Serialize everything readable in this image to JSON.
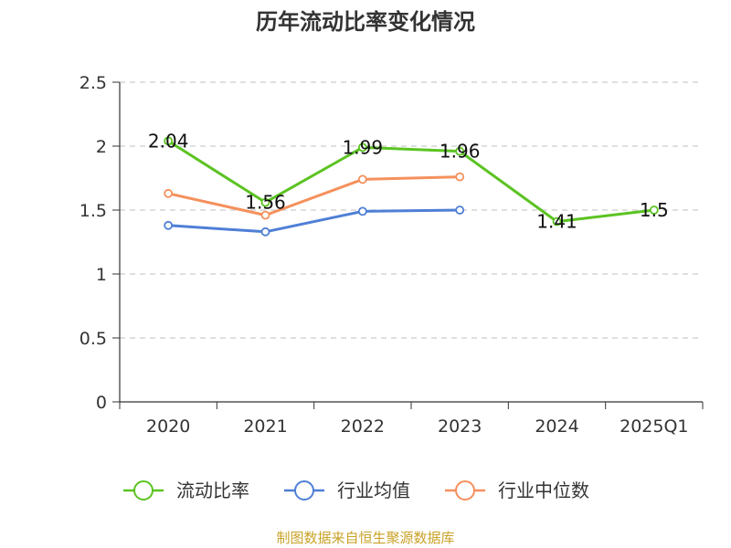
{
  "title": "历年流动比率变化情况",
  "source": "制图数据来自恒生聚源数据库",
  "chart_data": {
    "type": "line",
    "categories": [
      "2020",
      "2021",
      "2022",
      "2023",
      "2024",
      "2025Q1"
    ],
    "ylim": [
      0,
      2.5
    ],
    "yticks": [
      "0",
      "0.5",
      "1",
      "1.5",
      "2",
      "2.5"
    ],
    "grid": true,
    "legend_position": "bottom",
    "series": [
      {
        "name": "流动比率",
        "color": "#5bc322",
        "values": [
          2.04,
          1.56,
          1.99,
          1.96,
          1.41,
          1.5
        ],
        "labels": [
          "2.04",
          "1.56",
          "1.99",
          "1.96",
          "1.41",
          "1.5"
        ],
        "show_labels": true
      },
      {
        "name": "行业均值",
        "color": "#4f7fd6",
        "values": [
          1.38,
          1.33,
          1.49,
          1.5,
          null,
          null
        ],
        "show_labels": false
      },
      {
        "name": "行业中位数",
        "color": "#f5905c",
        "values": [
          1.63,
          1.46,
          1.74,
          1.76,
          null,
          null
        ],
        "show_labels": false
      }
    ]
  }
}
